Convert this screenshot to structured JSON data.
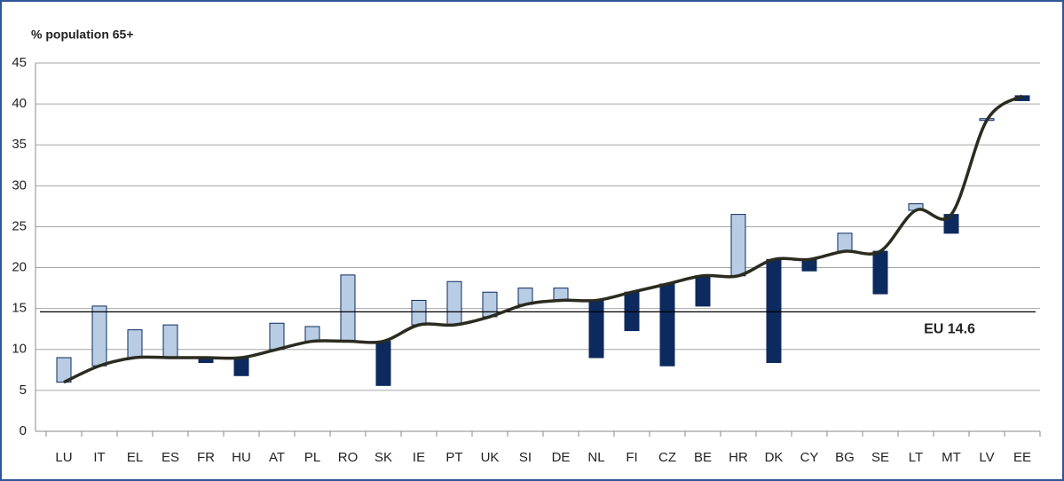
{
  "chart_data": {
    "type": "floating_bar_line",
    "y_label": "% population 65+",
    "categories": [
      "LU",
      "IT",
      "EL",
      "ES",
      "FR",
      "HU",
      "AT",
      "PL",
      "RO",
      "SK",
      "IE",
      "PT",
      "UK",
      "SI",
      "DE",
      "NL",
      "FI",
      "CZ",
      "BE",
      "HR",
      "DK",
      "CY",
      "BG",
      "SE",
      "LT",
      "MT",
      "LV",
      "EE"
    ],
    "values": [
      6,
      8,
      9,
      9,
      9,
      9,
      10,
      11,
      11,
      11,
      13,
      13,
      14,
      15.5,
      16,
      16,
      17,
      18,
      19,
      19,
      21,
      21,
      22,
      22,
      27,
      26.5,
      38,
      41
    ],
    "bar_values": [
      9,
      15.3,
      12.4,
      13,
      8.4,
      6.8,
      13.2,
      12.8,
      19.1,
      5.6,
      16,
      18.3,
      17,
      17.5,
      17.5,
      9,
      12.3,
      8,
      15.3,
      26.5,
      8.4,
      19.6,
      24.2,
      16.8,
      27.8,
      24.2,
      38.2,
      40.4
    ],
    "line_color": "#2b2b1f",
    "increase_color": "#b8cce4",
    "decrease_color": "#0d2a5e",
    "reference": {
      "value": 14.6,
      "label": "EU 14.6"
    },
    "ylim": [
      0,
      45
    ],
    "yticks": [
      0,
      5,
      10,
      15,
      20,
      25,
      30,
      35,
      40,
      45
    ],
    "grid": true
  }
}
